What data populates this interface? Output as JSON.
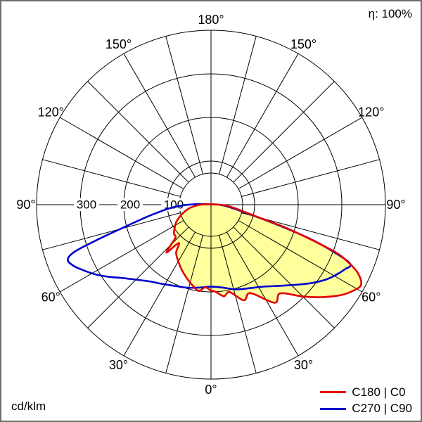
{
  "frame": {
    "eta_label": "η: 100%",
    "units_label": "cd/klm"
  },
  "chart_data": {
    "type": "line",
    "projection": "polar",
    "description": "Luminaire polar luminous intensity distribution curve",
    "zero_angle_position": "bottom",
    "angle_grid_step_deg": 15,
    "angle_label_step_deg": 30,
    "angle_labels": [
      "0°",
      "30°",
      "60°",
      "90°",
      "120°",
      "150°",
      "180°"
    ],
    "angle_label_values": [
      0,
      30,
      60,
      90,
      120,
      150,
      180
    ],
    "radial_unit": "cd/klm",
    "radial_rings": [
      100,
      200,
      300,
      400
    ],
    "radial_tick_labels": [
      {
        "value": 100,
        "label": "100"
      },
      {
        "value": 200,
        "label": "200"
      },
      {
        "value": 300,
        "label": "300"
      }
    ],
    "efficiency_label": "η: 100%",
    "points_format": "[gamma_deg signed (negative = left half plane, positive = right half plane, 0 = nadir), intensity in cd/klm]",
    "series": [
      {
        "name": "C180 | C0",
        "color": "#e30000",
        "fill": "#ffff9c",
        "points": [
          [
            -96,
            8
          ],
          [
            -91,
            22
          ],
          [
            -86,
            35
          ],
          [
            -80,
            52
          ],
          [
            -72,
            70
          ],
          [
            -64,
            88
          ],
          [
            -58,
            98
          ],
          [
            -52,
            108
          ],
          [
            -47,
            112
          ],
          [
            -43,
            150
          ],
          [
            -40,
            115
          ],
          [
            -36,
            136
          ],
          [
            -30,
            150
          ],
          [
            -24,
            164
          ],
          [
            -18,
            178
          ],
          [
            -12,
            192
          ],
          [
            -8,
            200
          ],
          [
            -4,
            190
          ],
          [
            0,
            197
          ],
          [
            3,
            200
          ],
          [
            8,
            212
          ],
          [
            12,
            205
          ],
          [
            19,
            232
          ],
          [
            24,
            222
          ],
          [
            33,
            268
          ],
          [
            38,
            258
          ],
          [
            45,
            298
          ],
          [
            50,
            330
          ],
          [
            55,
            362
          ],
          [
            59,
            382
          ],
          [
            62,
            390
          ],
          [
            65,
            372
          ],
          [
            67,
            345
          ],
          [
            69,
            308
          ],
          [
            71,
            235
          ],
          [
            73,
            175
          ],
          [
            75,
            115
          ],
          [
            79,
            70
          ],
          [
            84,
            45
          ],
          [
            89,
            25
          ],
          [
            94,
            10
          ]
        ]
      },
      {
        "name": "C270 | C90",
        "color": "#0000cd",
        "fill": null,
        "points": [
          [
            -96,
            8
          ],
          [
            -93,
            25
          ],
          [
            -89,
            60
          ],
          [
            -85,
            95
          ],
          [
            -81,
            130
          ],
          [
            -78,
            165
          ],
          [
            -75,
            215
          ],
          [
            -73,
            268
          ],
          [
            -71,
            330
          ],
          [
            -69,
            352
          ],
          [
            -66,
            345
          ],
          [
            -63,
            330
          ],
          [
            -59,
            310
          ],
          [
            -55,
            288
          ],
          [
            -50,
            262
          ],
          [
            -44,
            240
          ],
          [
            -38,
            224
          ],
          [
            -32,
            214
          ],
          [
            -24,
            204
          ],
          [
            -16,
            198
          ],
          [
            -8,
            192
          ],
          [
            0,
            188
          ],
          [
            8,
            192
          ],
          [
            16,
            202
          ],
          [
            24,
            210
          ],
          [
            32,
            222
          ],
          [
            40,
            243
          ],
          [
            46,
            265
          ],
          [
            52,
            292
          ],
          [
            57,
            315
          ],
          [
            61,
            330
          ],
          [
            64,
            340
          ],
          [
            67,
            347
          ],
          [
            69,
            300
          ],
          [
            71,
            240
          ],
          [
            73,
            165
          ],
          [
            75,
            110
          ],
          [
            78,
            70
          ],
          [
            82,
            45
          ],
          [
            86,
            30
          ],
          [
            90,
            18
          ],
          [
            94,
            8
          ]
        ]
      }
    ]
  }
}
